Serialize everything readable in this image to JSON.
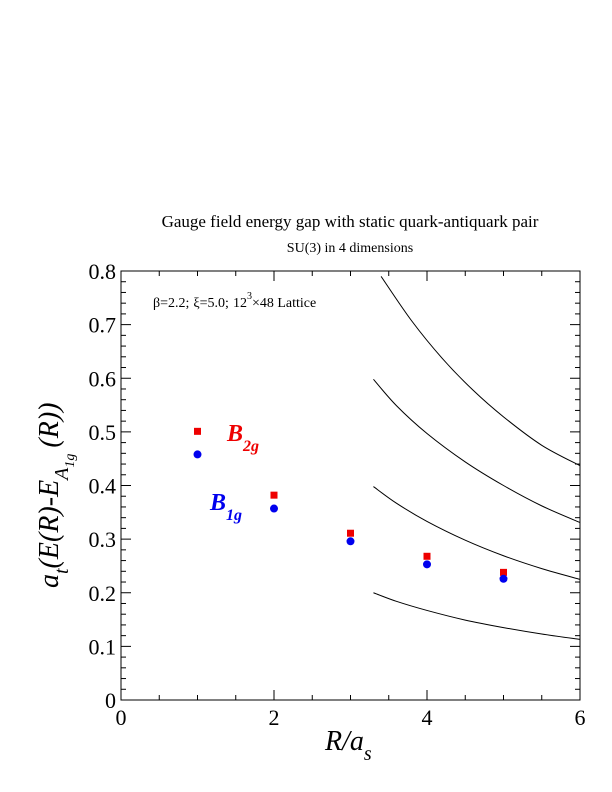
{
  "chart_data": {
    "type": "scatter",
    "title": "Gauge field energy gap with static quark-antiquark pair",
    "subtitle": "SU(3) in 4 dimensions",
    "annotation": {
      "beta": "β=2.2;",
      "xi": "ξ=5.0;",
      "lattice_prefix": "12",
      "lattice_sup": "3",
      "lattice_suffix": "×48 Lattice"
    },
    "xlabel": {
      "main": "R/a",
      "sub": "s"
    },
    "ylabel": {
      "a": "a",
      "t": "t",
      "mid": "(E(R)-E",
      "A": "A",
      "sub": "1g",
      "end": "(R))"
    },
    "xlim": [
      0,
      6
    ],
    "ylim": [
      0,
      0.8
    ],
    "x_ticks": [
      "0",
      "2",
      "4",
      "6"
    ],
    "y_ticks": [
      "0",
      "0.1",
      "0.2",
      "0.3",
      "0.4",
      "0.5",
      "0.6",
      "0.7",
      "0.8"
    ],
    "grid": false,
    "series": [
      {
        "name": "B2g",
        "label_main": "B",
        "label_sub": "2g",
        "color": "#ee0000",
        "marker": "square",
        "x": [
          1,
          2,
          3,
          4,
          5
        ],
        "y": [
          0.501,
          0.382,
          0.311,
          0.268,
          0.238
        ]
      },
      {
        "name": "B1g",
        "label_main": "B",
        "label_sub": "1g",
        "color": "#0000ee",
        "marker": "circle",
        "x": [
          1,
          2,
          3,
          4,
          5
        ],
        "y": [
          0.458,
          0.357,
          0.296,
          0.253,
          0.226
        ]
      }
    ],
    "reference_curves": [
      {
        "x": [
          3.3,
          3.6,
          4.0,
          4.5,
          5.0,
          5.5,
          6.0
        ],
        "y": [
          0.2,
          0.184,
          0.167,
          0.149,
          0.135,
          0.123,
          0.113
        ]
      },
      {
        "x": [
          3.3,
          3.6,
          4.0,
          4.5,
          5.0,
          5.5,
          6.0
        ],
        "y": [
          0.398,
          0.367,
          0.333,
          0.298,
          0.269,
          0.245,
          0.225
        ]
      },
      {
        "x": [
          3.3,
          3.6,
          4.0,
          4.5,
          5.0,
          5.5,
          6.0
        ],
        "y": [
          0.598,
          0.549,
          0.497,
          0.444,
          0.4,
          0.362,
          0.331
        ]
      },
      {
        "x": [
          3.4,
          3.8,
          4.2,
          4.6,
          5.0,
          5.5,
          6.0
        ],
        "y": [
          0.79,
          0.707,
          0.637,
          0.578,
          0.528,
          0.475,
          0.437
        ]
      }
    ]
  }
}
